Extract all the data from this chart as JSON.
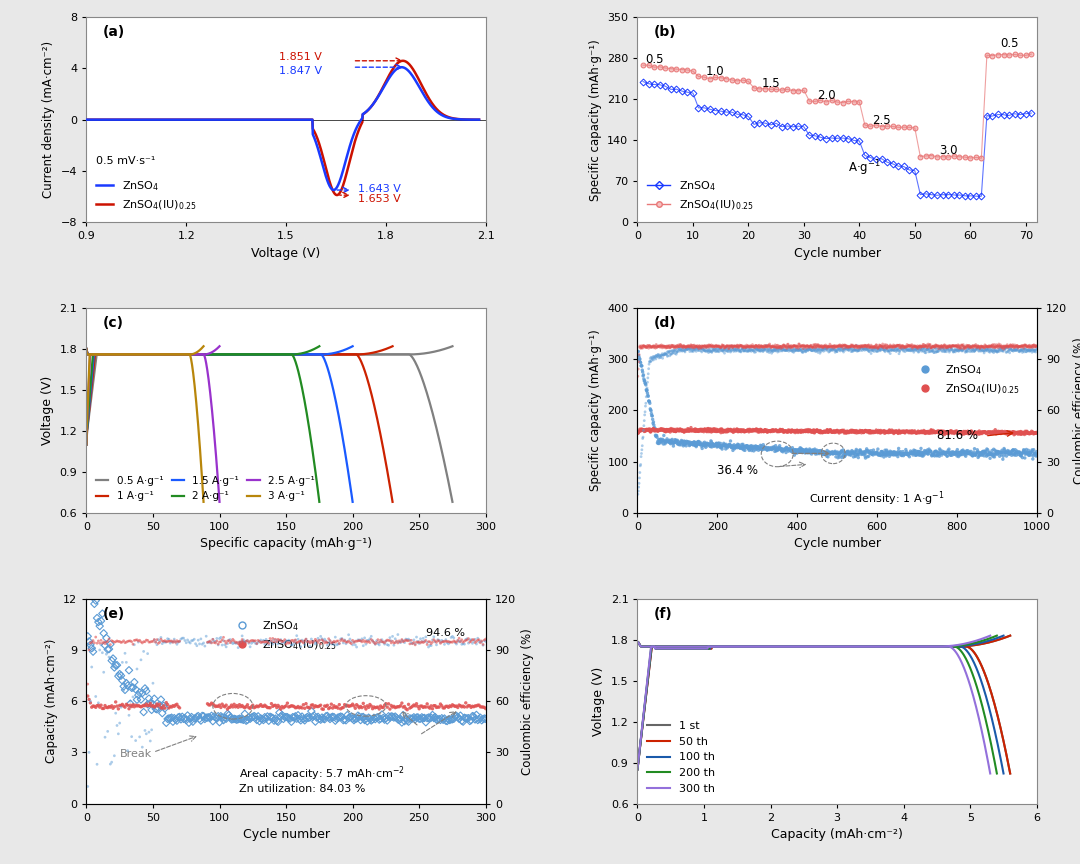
{
  "panel_a": {
    "label": "(a)",
    "xlabel": "Voltage (V)",
    "ylabel": "Current density (mA·cm⁻²)",
    "xlim": [
      0.9,
      2.1
    ],
    "ylim": [
      -8,
      8
    ],
    "xticks": [
      0.9,
      1.2,
      1.5,
      1.8,
      2.1
    ],
    "yticks": [
      -8,
      -4,
      0,
      4,
      8
    ],
    "scan_rate": "0.5 mV·s⁻¹",
    "blue_peak_v": 1.847,
    "blue_peak_i": 4.1,
    "red_peak_v": 1.851,
    "red_peak_i": 4.6,
    "blue_trough_v": 1.643,
    "blue_trough_i": -5.5,
    "red_trough_v": 1.653,
    "red_trough_i": -5.9,
    "legend_colors": [
      "#1a3aff",
      "#cc1100"
    ]
  },
  "panel_b": {
    "label": "(b)",
    "xlabel": "Cycle number",
    "ylabel": "Specific capacity (mAh·g⁻¹)",
    "xlim": [
      0,
      72
    ],
    "ylim": [
      0,
      350
    ],
    "xticks": [
      0,
      10,
      20,
      30,
      40,
      50,
      60,
      70
    ],
    "yticks": [
      0,
      70,
      140,
      210,
      280,
      350
    ],
    "blue_color": "#1a3aff",
    "pink_color": "#e87878",
    "pink_face": "#f5c0c0"
  },
  "panel_c": {
    "label": "(c)",
    "xlabel": "Specific capacity (mAh·g⁻¹)",
    "ylabel": "Voltage (V)",
    "xlim": [
      0,
      300
    ],
    "ylim": [
      0.6,
      2.1
    ],
    "xticks": [
      0,
      50,
      100,
      150,
      200,
      250,
      300
    ],
    "yticks": [
      0.6,
      0.9,
      1.2,
      1.5,
      1.8,
      2.1
    ],
    "rates": [
      "0.5 A·g⁻¹",
      "1 A·g⁻¹",
      "1.5 A·g⁻¹",
      "2 A·g⁻¹",
      "2.5 A·g⁻¹",
      "3 A·g⁻¹"
    ],
    "colors": [
      "#808080",
      "#cc2200",
      "#1a5aff",
      "#228B22",
      "#9932CC",
      "#B8860B"
    ],
    "capacities": [
      275,
      230,
      200,
      175,
      100,
      88
    ]
  },
  "panel_d": {
    "label": "(d)",
    "xlabel": "Cycle number",
    "ylabel_left": "Specific capacity (mAh·g⁻¹)",
    "ylabel_right": "Coulombic efficiency (%)",
    "xlim": [
      0,
      1000
    ],
    "ylim_left": [
      0,
      400
    ],
    "ylim_right": [
      0,
      120
    ],
    "xticks": [
      0,
      200,
      400,
      600,
      800,
      1000
    ],
    "yticks_left": [
      0,
      100,
      200,
      300,
      400
    ],
    "yticks_right": [
      0,
      30,
      60,
      90,
      120
    ],
    "blue_color": "#5b9bd5",
    "red_color": "#e05050",
    "znso4_start": 320,
    "znso4_end": 116,
    "znso4iu_val": 160,
    "ce_blue": 95,
    "ce_red": 97
  },
  "panel_e": {
    "label": "(e)",
    "xlabel": "Cycle number",
    "ylabel_left": "Capacity (mAh·cm⁻²)",
    "ylabel_right": "Coulombic efficiency (%)",
    "xlim": [
      0,
      300
    ],
    "ylim_left": [
      0,
      12
    ],
    "ylim_right": [
      0,
      120
    ],
    "xticks": [
      0,
      50,
      100,
      150,
      200,
      250,
      300
    ],
    "yticks_left": [
      0,
      3,
      6,
      9,
      12
    ],
    "yticks_right": [
      0,
      30,
      60,
      90,
      120
    ],
    "blue_color": "#5b9bd5",
    "red_color": "#e05050"
  },
  "panel_f": {
    "label": "(f)",
    "xlabel": "Capacity (mAh·cm⁻²)",
    "ylabel": "Voltage (V)",
    "xlim": [
      0,
      6
    ],
    "ylim": [
      0.6,
      2.1
    ],
    "xticks": [
      0,
      1,
      2,
      3,
      4,
      5,
      6
    ],
    "yticks": [
      0.6,
      0.9,
      1.2,
      1.5,
      1.8,
      2.1
    ],
    "cycles": [
      "1 st",
      "50 th",
      "100 th",
      "200 th",
      "300 th"
    ],
    "colors": [
      "#666666",
      "#cc2200",
      "#1a5aaa",
      "#228B22",
      "#9370DB"
    ],
    "capacities": [
      5.6,
      5.6,
      5.5,
      5.4,
      5.3
    ]
  },
  "bg_color": "#e8e8e8",
  "panel_bg": "#ffffff",
  "spine_color": "#888888"
}
